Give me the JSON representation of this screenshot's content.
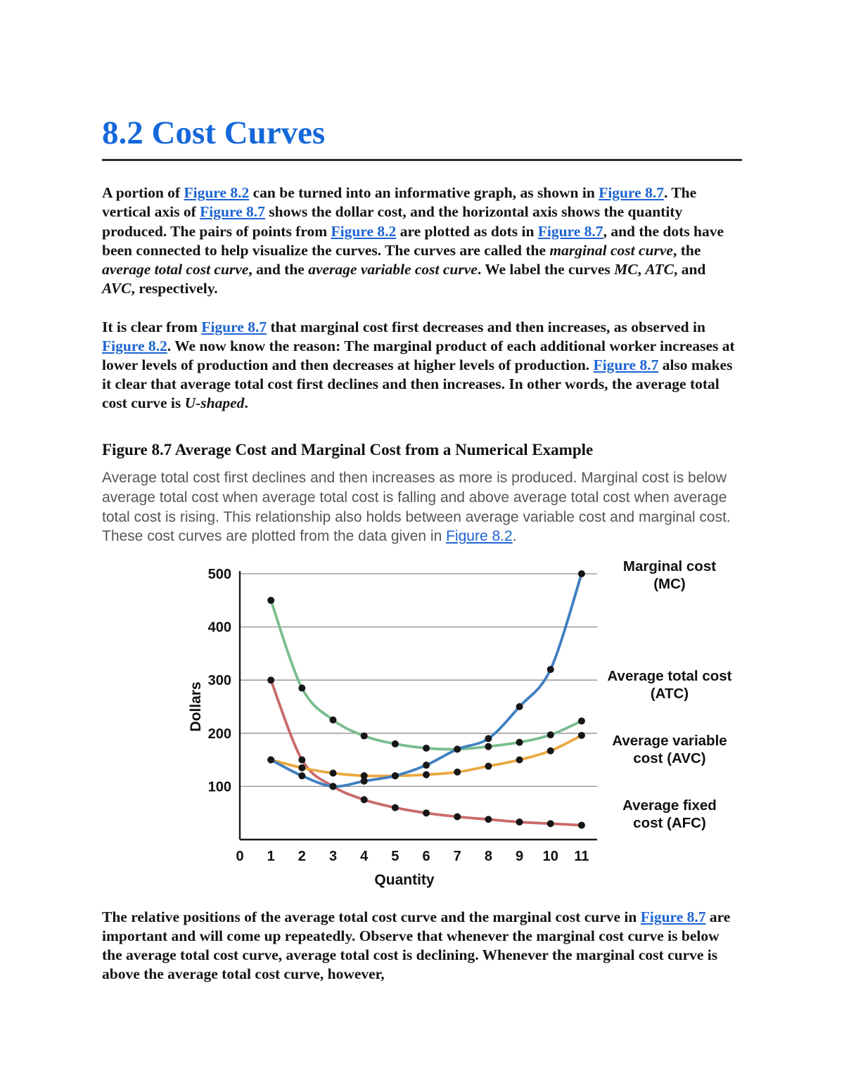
{
  "page_title": "8.2 Cost Curves",
  "content": {
    "p1": [
      {
        "t": "A portion of "
      },
      {
        "t": "Figure 8.2",
        "s": "link"
      },
      {
        "t": " can be turned into an informative graph, as shown in "
      },
      {
        "t": "Figure 8.7",
        "s": "link"
      },
      {
        "t": ". The vertical axis of "
      },
      {
        "t": "Figure 8.7",
        "s": "link"
      },
      {
        "t": " shows the dollar cost, and the horizontal axis shows the quantity produced. The pairs of points from "
      },
      {
        "t": "Figure 8.2",
        "s": "link"
      },
      {
        "t": " are plotted as dots in "
      },
      {
        "t": "Figure 8.7",
        "s": "link"
      },
      {
        "t": ", and the dots have been connected to help visualize the curves. The curves are called the "
      },
      {
        "t": "marginal cost curve",
        "s": "italic"
      },
      {
        "t": ", the "
      },
      {
        "t": "average total cost curve",
        "s": "italic"
      },
      {
        "t": ", and the "
      },
      {
        "t": "average variable cost curve",
        "s": "italic"
      },
      {
        "t": ". We label the curves "
      },
      {
        "t": "MC",
        "s": "italic"
      },
      {
        "t": ", "
      },
      {
        "t": "ATC",
        "s": "italic"
      },
      {
        "t": ", and "
      },
      {
        "t": "AVC",
        "s": "italic"
      },
      {
        "t": ", respectively."
      }
    ],
    "p2": [
      {
        "t": "It is clear from "
      },
      {
        "t": "Figure 8.7",
        "s": "link"
      },
      {
        "t": " that marginal cost first decreases and then increases, as observed in "
      },
      {
        "t": "Figure 8.2",
        "s": "link"
      },
      {
        "t": ". We now know the reason: The marginal product of each additional worker increases at lower levels of production and then decreases at higher levels of production. "
      },
      {
        "t": "Figure 8.7",
        "s": "link"
      },
      {
        "t": " also makes it clear that average total cost first declines and then increases. In other words, the average total cost curve is "
      },
      {
        "t": "U-shaped",
        "s": "italic"
      },
      {
        "t": "."
      }
    ],
    "figure_heading": "Figure 8.7 Average Cost and Marginal Cost from a Numerical Example",
    "caption": [
      {
        "t": "Average total cost first declines and then increases as more is produced. Marginal cost is below average total cost when average total cost is falling and above average total cost when average total cost is rising. This relationship also holds between average variable cost and marginal cost. These cost curves are plotted from the data given in "
      },
      {
        "t": "Figure 8.2",
        "s": "link"
      },
      {
        "t": "."
      }
    ],
    "p3": [
      {
        "t": "The relative positions of the average total cost curve and the marginal cost curve in "
      },
      {
        "t": "Figure 8.7",
        "s": "link"
      },
      {
        "t": " are important and will come up repeatedly. Observe that whenever the marginal cost curve is below the average total cost curve, average total cost is declining. Whenever the marginal cost curve is above the average total cost curve, however,"
      }
    ]
  },
  "chart_data": {
    "type": "line",
    "title": "Average Cost and Marginal Cost from a Numerical Example",
    "xlabel": "Quantity",
    "ylabel": "Dollars",
    "xlim": [
      0,
      11.5
    ],
    "ylim": [
      0,
      500
    ],
    "xticks": [
      0,
      1,
      2,
      3,
      4,
      5,
      6,
      7,
      8,
      9,
      10,
      11
    ],
    "yticks": [
      100,
      200,
      300,
      400,
      500
    ],
    "grid": true,
    "marker_color": "#161616",
    "x": [
      1,
      2,
      3,
      4,
      5,
      6,
      7,
      8,
      9,
      10,
      11
    ],
    "series": [
      {
        "name": "Marginal cost (MC)",
        "color": "#3f7fc1",
        "values": [
          150,
          120,
          100,
          110,
          120,
          140,
          170,
          190,
          250,
          320,
          500
        ]
      },
      {
        "name": "Average total cost (ATC)",
        "color": "#79bd8f",
        "values": [
          450,
          285,
          225,
          195,
          180,
          172,
          170,
          175,
          183,
          197,
          223
        ]
      },
      {
        "name": "Average variable cost (AVC)",
        "color": "#e9a83f",
        "values": [
          150,
          135,
          125,
          120,
          120,
          122,
          127,
          138,
          150,
          167,
          196
        ]
      },
      {
        "name": "Average fixed cost (AFC)",
        "color": "#c96a6a",
        "values": [
          300,
          150,
          100,
          75,
          60,
          50,
          43,
          38,
          33,
          30,
          27
        ]
      }
    ]
  }
}
